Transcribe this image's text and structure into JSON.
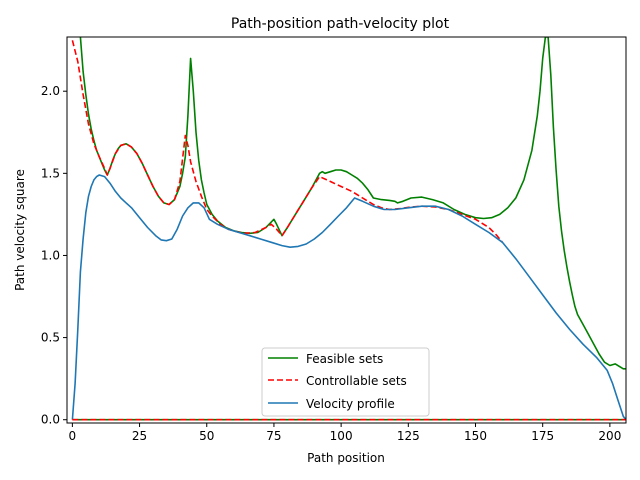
{
  "chart_data": {
    "type": "line",
    "title": "Path-position path-velocity plot",
    "xlabel": "Path position",
    "ylabel": "Path velocity square",
    "xlim": [
      -2,
      206
    ],
    "ylim": [
      -0.02,
      2.33
    ],
    "xticks": [
      "0",
      "25",
      "50",
      "75",
      "100",
      "125",
      "150",
      "175",
      "200"
    ],
    "yticks": [
      "0.0",
      "0.5",
      "1.0",
      "1.5",
      "2.0"
    ],
    "xtick_values": [
      0,
      25,
      50,
      75,
      100,
      125,
      150,
      175,
      200
    ],
    "ytick_values": [
      0.0,
      0.5,
      1.0,
      1.5,
      2.0
    ],
    "grid": false,
    "legend_position": "lower-center",
    "series": [
      {
        "name": "Feasible sets",
        "color": "#008000",
        "style": "solid",
        "points": [
          [
            3,
            2.33
          ],
          [
            4,
            2.12
          ],
          [
            5,
            1.98
          ],
          [
            6,
            1.86
          ],
          [
            7,
            1.77
          ],
          [
            8,
            1.7
          ],
          [
            9,
            1.64
          ],
          [
            10,
            1.6
          ],
          [
            11,
            1.56
          ],
          [
            12,
            1.52
          ],
          [
            13,
            1.49
          ],
          [
            14,
            1.53
          ],
          [
            15,
            1.58
          ],
          [
            16,
            1.62
          ],
          [
            17,
            1.65
          ],
          [
            18,
            1.67
          ],
          [
            20,
            1.68
          ],
          [
            22,
            1.66
          ],
          [
            24,
            1.62
          ],
          [
            26,
            1.56
          ],
          [
            28,
            1.49
          ],
          [
            30,
            1.42
          ],
          [
            32,
            1.36
          ],
          [
            34,
            1.32
          ],
          [
            36,
            1.31
          ],
          [
            38,
            1.34
          ],
          [
            40,
            1.42
          ],
          [
            41,
            1.5
          ],
          [
            42,
            1.6
          ],
          [
            43,
            1.85
          ],
          [
            44,
            2.2
          ],
          [
            45,
            2.0
          ],
          [
            46,
            1.75
          ],
          [
            47,
            1.58
          ],
          [
            48,
            1.46
          ],
          [
            49,
            1.38
          ],
          [
            50,
            1.31
          ],
          [
            52,
            1.25
          ],
          [
            54,
            1.21
          ],
          [
            57,
            1.17
          ],
          [
            60,
            1.15
          ],
          [
            63,
            1.14
          ],
          [
            66,
            1.135
          ],
          [
            69,
            1.14
          ],
          [
            72,
            1.17
          ],
          [
            75,
            1.22
          ],
          [
            76,
            1.19
          ],
          [
            78,
            1.12
          ],
          [
            80,
            1.17
          ],
          [
            83,
            1.25
          ],
          [
            86,
            1.33
          ],
          [
            89,
            1.41
          ],
          [
            92,
            1.5
          ],
          [
            93,
            1.51
          ],
          [
            94,
            1.5
          ],
          [
            96,
            1.51
          ],
          [
            98,
            1.52
          ],
          [
            100,
            1.52
          ],
          [
            102,
            1.51
          ],
          [
            104,
            1.49
          ],
          [
            106,
            1.47
          ],
          [
            108,
            1.44
          ],
          [
            110,
            1.4
          ],
          [
            112,
            1.35
          ],
          [
            115,
            1.34
          ],
          [
            118,
            1.335
          ],
          [
            120,
            1.33
          ],
          [
            121,
            1.32
          ],
          [
            123,
            1.33
          ],
          [
            126,
            1.35
          ],
          [
            130,
            1.355
          ],
          [
            134,
            1.34
          ],
          [
            138,
            1.32
          ],
          [
            142,
            1.28
          ],
          [
            146,
            1.25
          ],
          [
            150,
            1.23
          ],
          [
            153,
            1.225
          ],
          [
            156,
            1.23
          ],
          [
            159,
            1.25
          ],
          [
            162,
            1.29
          ],
          [
            165,
            1.35
          ],
          [
            168,
            1.46
          ],
          [
            171,
            1.64
          ],
          [
            173,
            1.85
          ],
          [
            174,
            2.0
          ],
          [
            175,
            2.2
          ],
          [
            176,
            2.33
          ],
          [
            177,
            2.33
          ],
          [
            178,
            2.1
          ],
          [
            179,
            1.78
          ],
          [
            180,
            1.52
          ],
          [
            181,
            1.3
          ],
          [
            182,
            1.15
          ],
          [
            183,
            1.03
          ],
          [
            184,
            0.93
          ],
          [
            185,
            0.84
          ],
          [
            186,
            0.76
          ],
          [
            187,
            0.69
          ],
          [
            188,
            0.64
          ],
          [
            190,
            0.58
          ],
          [
            192,
            0.52
          ],
          [
            194,
            0.46
          ],
          [
            196,
            0.4
          ],
          [
            198,
            0.35
          ],
          [
            200,
            0.33
          ],
          [
            202,
            0.34
          ],
          [
            204,
            0.32
          ],
          [
            205,
            0.31
          ],
          [
            206,
            0.31
          ]
        ]
      },
      {
        "name": "Controllable sets",
        "color": "#ff0000",
        "style": "dashed",
        "points": [
          [
            0,
            2.31
          ],
          [
            2,
            2.18
          ],
          [
            4,
            1.98
          ],
          [
            6,
            1.8
          ],
          [
            8,
            1.68
          ],
          [
            10,
            1.6
          ],
          [
            12,
            1.53
          ],
          [
            13,
            1.49
          ],
          [
            14,
            1.53
          ],
          [
            16,
            1.62
          ],
          [
            18,
            1.67
          ],
          [
            20,
            1.68
          ],
          [
            22,
            1.66
          ],
          [
            24,
            1.62
          ],
          [
            26,
            1.56
          ],
          [
            28,
            1.49
          ],
          [
            30,
            1.42
          ],
          [
            32,
            1.36
          ],
          [
            34,
            1.32
          ],
          [
            36,
            1.31
          ],
          [
            38,
            1.34
          ],
          [
            40,
            1.45
          ],
          [
            42,
            1.73
          ],
          [
            43,
            1.67
          ],
          [
            44,
            1.57
          ],
          [
            46,
            1.45
          ],
          [
            48,
            1.36
          ],
          [
            50,
            1.28
          ],
          [
            52,
            1.24
          ],
          [
            55,
            1.19
          ],
          [
            58,
            1.16
          ],
          [
            61,
            1.145
          ],
          [
            64,
            1.135
          ],
          [
            68,
            1.14
          ],
          [
            72,
            1.17
          ],
          [
            74,
            1.19
          ],
          [
            76,
            1.16
          ],
          [
            78,
            1.12
          ],
          [
            80,
            1.17
          ],
          [
            83,
            1.25
          ],
          [
            86,
            1.33
          ],
          [
            89,
            1.41
          ],
          [
            92,
            1.48
          ],
          [
            96,
            1.45
          ],
          [
            100,
            1.42
          ],
          [
            104,
            1.39
          ],
          [
            108,
            1.35
          ],
          [
            112,
            1.31
          ],
          [
            115,
            1.29
          ],
          [
            118,
            1.28
          ],
          [
            122,
            1.285
          ],
          [
            126,
            1.295
          ],
          [
            130,
            1.3
          ],
          [
            135,
            1.295
          ],
          [
            140,
            1.28
          ],
          [
            145,
            1.25
          ],
          [
            150,
            1.22
          ],
          [
            155,
            1.17
          ],
          [
            158,
            1.12
          ],
          [
            160,
            1.08
          ]
        ]
      },
      {
        "name": "Velocity profile",
        "color": "#1f77b4",
        "style": "solid",
        "points": [
          [
            0,
            0.0
          ],
          [
            1,
            0.22
          ],
          [
            2,
            0.55
          ],
          [
            3,
            0.9
          ],
          [
            4,
            1.1
          ],
          [
            5,
            1.26
          ],
          [
            6,
            1.36
          ],
          [
            7,
            1.42
          ],
          [
            8,
            1.46
          ],
          [
            9,
            1.48
          ],
          [
            10,
            1.49
          ],
          [
            12,
            1.48
          ],
          [
            14,
            1.44
          ],
          [
            16,
            1.39
          ],
          [
            18,
            1.35
          ],
          [
            20,
            1.32
          ],
          [
            22,
            1.29
          ],
          [
            25,
            1.23
          ],
          [
            28,
            1.17
          ],
          [
            31,
            1.12
          ],
          [
            33,
            1.095
          ],
          [
            35,
            1.09
          ],
          [
            37,
            1.1
          ],
          [
            39,
            1.16
          ],
          [
            41,
            1.24
          ],
          [
            43,
            1.29
          ],
          [
            45,
            1.32
          ],
          [
            47,
            1.32
          ],
          [
            49,
            1.29
          ],
          [
            51,
            1.22
          ],
          [
            54,
            1.19
          ],
          [
            58,
            1.16
          ],
          [
            62,
            1.14
          ],
          [
            66,
            1.12
          ],
          [
            70,
            1.1
          ],
          [
            74,
            1.08
          ],
          [
            78,
            1.06
          ],
          [
            81,
            1.05
          ],
          [
            84,
            1.055
          ],
          [
            87,
            1.07
          ],
          [
            90,
            1.1
          ],
          [
            93,
            1.14
          ],
          [
            96,
            1.19
          ],
          [
            99,
            1.24
          ],
          [
            102,
            1.29
          ],
          [
            104,
            1.33
          ],
          [
            105,
            1.35
          ],
          [
            108,
            1.33
          ],
          [
            112,
            1.3
          ],
          [
            116,
            1.28
          ],
          [
            120,
            1.28
          ],
          [
            125,
            1.29
          ],
          [
            130,
            1.3
          ],
          [
            135,
            1.3
          ],
          [
            140,
            1.28
          ],
          [
            145,
            1.24
          ],
          [
            150,
            1.19
          ],
          [
            155,
            1.14
          ],
          [
            160,
            1.08
          ],
          [
            165,
            0.98
          ],
          [
            170,
            0.87
          ],
          [
            175,
            0.76
          ],
          [
            180,
            0.65
          ],
          [
            185,
            0.55
          ],
          [
            190,
            0.46
          ],
          [
            195,
            0.38
          ],
          [
            199,
            0.3
          ],
          [
            201,
            0.22
          ],
          [
            203,
            0.12
          ],
          [
            205,
            0.02
          ],
          [
            206,
            0.0
          ]
        ]
      },
      {
        "name": "",
        "color": "#008000",
        "style": "solid",
        "points": [
          [
            0,
            0.0
          ],
          [
            206,
            0.0
          ]
        ]
      },
      {
        "name": "",
        "color": "#ff0000",
        "style": "dashed",
        "points": [
          [
            0,
            0.0
          ],
          [
            206,
            0.0
          ]
        ]
      }
    ]
  }
}
